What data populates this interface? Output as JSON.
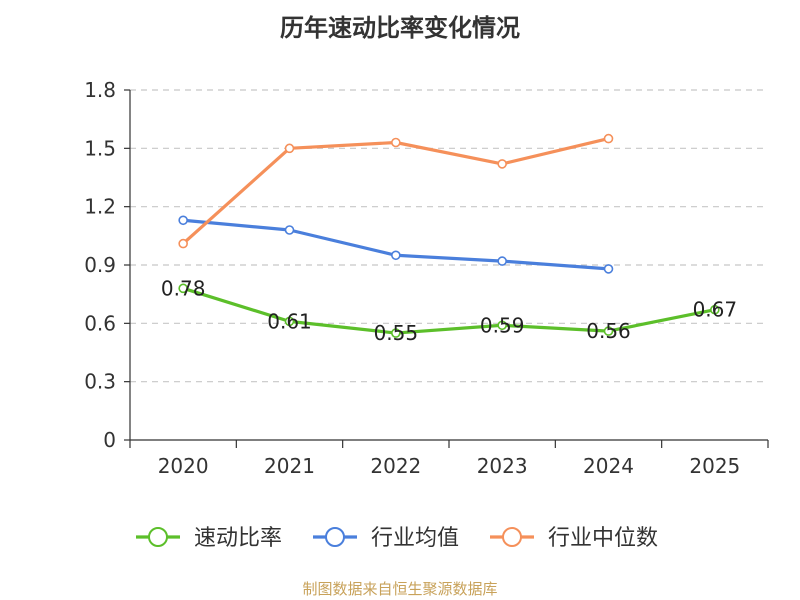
{
  "chart_data": {
    "type": "line",
    "title": "历年速动比率变化情况",
    "categories": [
      "2020",
      "2021",
      "2022",
      "2023",
      "2024",
      "2025"
    ],
    "y_ticks": [
      "0",
      "0.3",
      "0.6",
      "0.9",
      "1.2",
      "1.5",
      "1.8"
    ],
    "ylim": [
      0,
      1.8
    ],
    "grid": true,
    "legend_position": "bottom",
    "series": [
      {
        "name": "速动比率",
        "color": "#5cbf2a",
        "values": [
          0.78,
          0.61,
          0.55,
          0.59,
          0.56,
          0.67
        ],
        "labels": [
          "0.78",
          "0.61",
          "0.55",
          "0.59",
          "0.56",
          "0.67"
        ],
        "show_labels": true
      },
      {
        "name": "行业均值",
        "color": "#4a7fdc",
        "values": [
          1.13,
          1.08,
          0.95,
          0.92,
          0.88,
          null
        ],
        "show_labels": false
      },
      {
        "name": "行业中位数",
        "color": "#f5905a",
        "values": [
          1.01,
          1.5,
          1.53,
          1.42,
          1.55,
          null
        ],
        "show_labels": false
      }
    ],
    "source": "制图数据来自恒生聚源数据库"
  }
}
